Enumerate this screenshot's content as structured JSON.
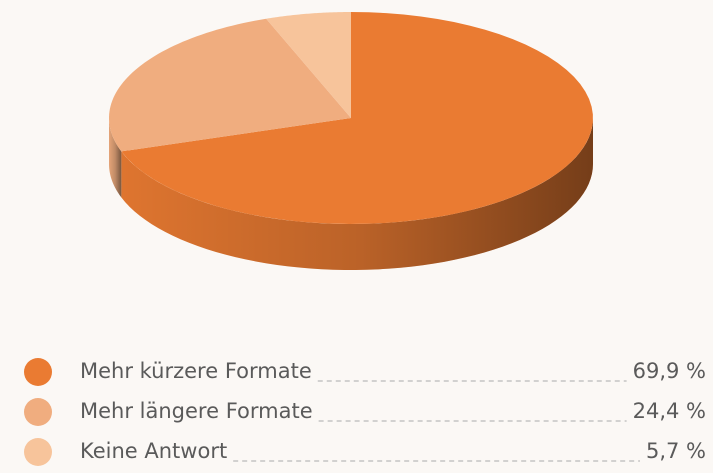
{
  "chart_data": {
    "type": "pie",
    "categories": [
      "Mehr kürzere Formate",
      "Mehr längere Formate",
      "Keine Antwort"
    ],
    "values": [
      69.9,
      24.4,
      5.7
    ],
    "value_labels": [
      "69,9 %",
      "24,4 %",
      "5,7 %"
    ],
    "colors": [
      "#ea7b32",
      "#f0ad7f",
      "#f7c49b"
    ]
  }
}
